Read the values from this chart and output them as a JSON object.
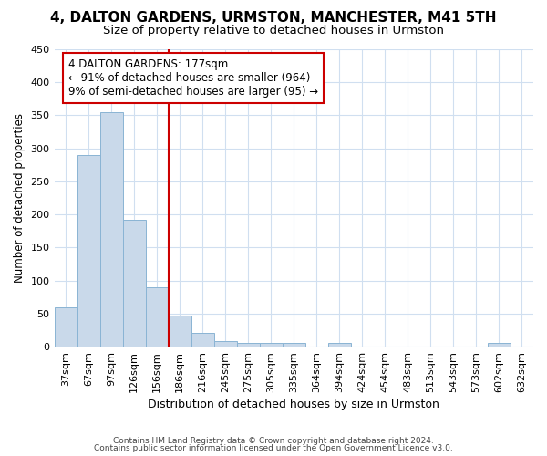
{
  "title": "4, DALTON GARDENS, URMSTON, MANCHESTER, M41 5TH",
  "subtitle": "Size of property relative to detached houses in Urmston",
  "xlabel": "Distribution of detached houses by size in Urmston",
  "ylabel": "Number of detached properties",
  "bin_labels": [
    "37sqm",
    "67sqm",
    "97sqm",
    "126sqm",
    "156sqm",
    "186sqm",
    "216sqm",
    "245sqm",
    "275sqm",
    "305sqm",
    "335sqm",
    "364sqm",
    "394sqm",
    "424sqm",
    "454sqm",
    "483sqm",
    "513sqm",
    "543sqm",
    "573sqm",
    "602sqm",
    "632sqm"
  ],
  "bar_heights": [
    60,
    290,
    355,
    192,
    90,
    47,
    21,
    9,
    5,
    5,
    5,
    0,
    5,
    0,
    0,
    0,
    0,
    0,
    0,
    5,
    0
  ],
  "bar_color": "#c9d9ea",
  "bar_edge_color": "#8ab4d4",
  "grid_color": "#d0dff0",
  "vline_x": 4.5,
  "vline_color": "#cc0000",
  "annotation_line1": "4 DALTON GARDENS: 177sqm",
  "annotation_line2": "← 91% of detached houses are smaller (964)",
  "annotation_line3": "9% of semi-detached houses are larger (95) →",
  "annotation_box_color": "#cc0000",
  "ylim": [
    0,
    450
  ],
  "yticks": [
    0,
    50,
    100,
    150,
    200,
    250,
    300,
    350,
    400,
    450
  ],
  "footer_line1": "Contains HM Land Registry data © Crown copyright and database right 2024.",
  "footer_line2": "Contains public sector information licensed under the Open Government Licence v3.0.",
  "title_fontsize": 11,
  "subtitle_fontsize": 9.5,
  "xlabel_fontsize": 9,
  "ylabel_fontsize": 8.5,
  "tick_fontsize": 8,
  "annot_fontsize": 8.5,
  "footer_fontsize": 6.5
}
